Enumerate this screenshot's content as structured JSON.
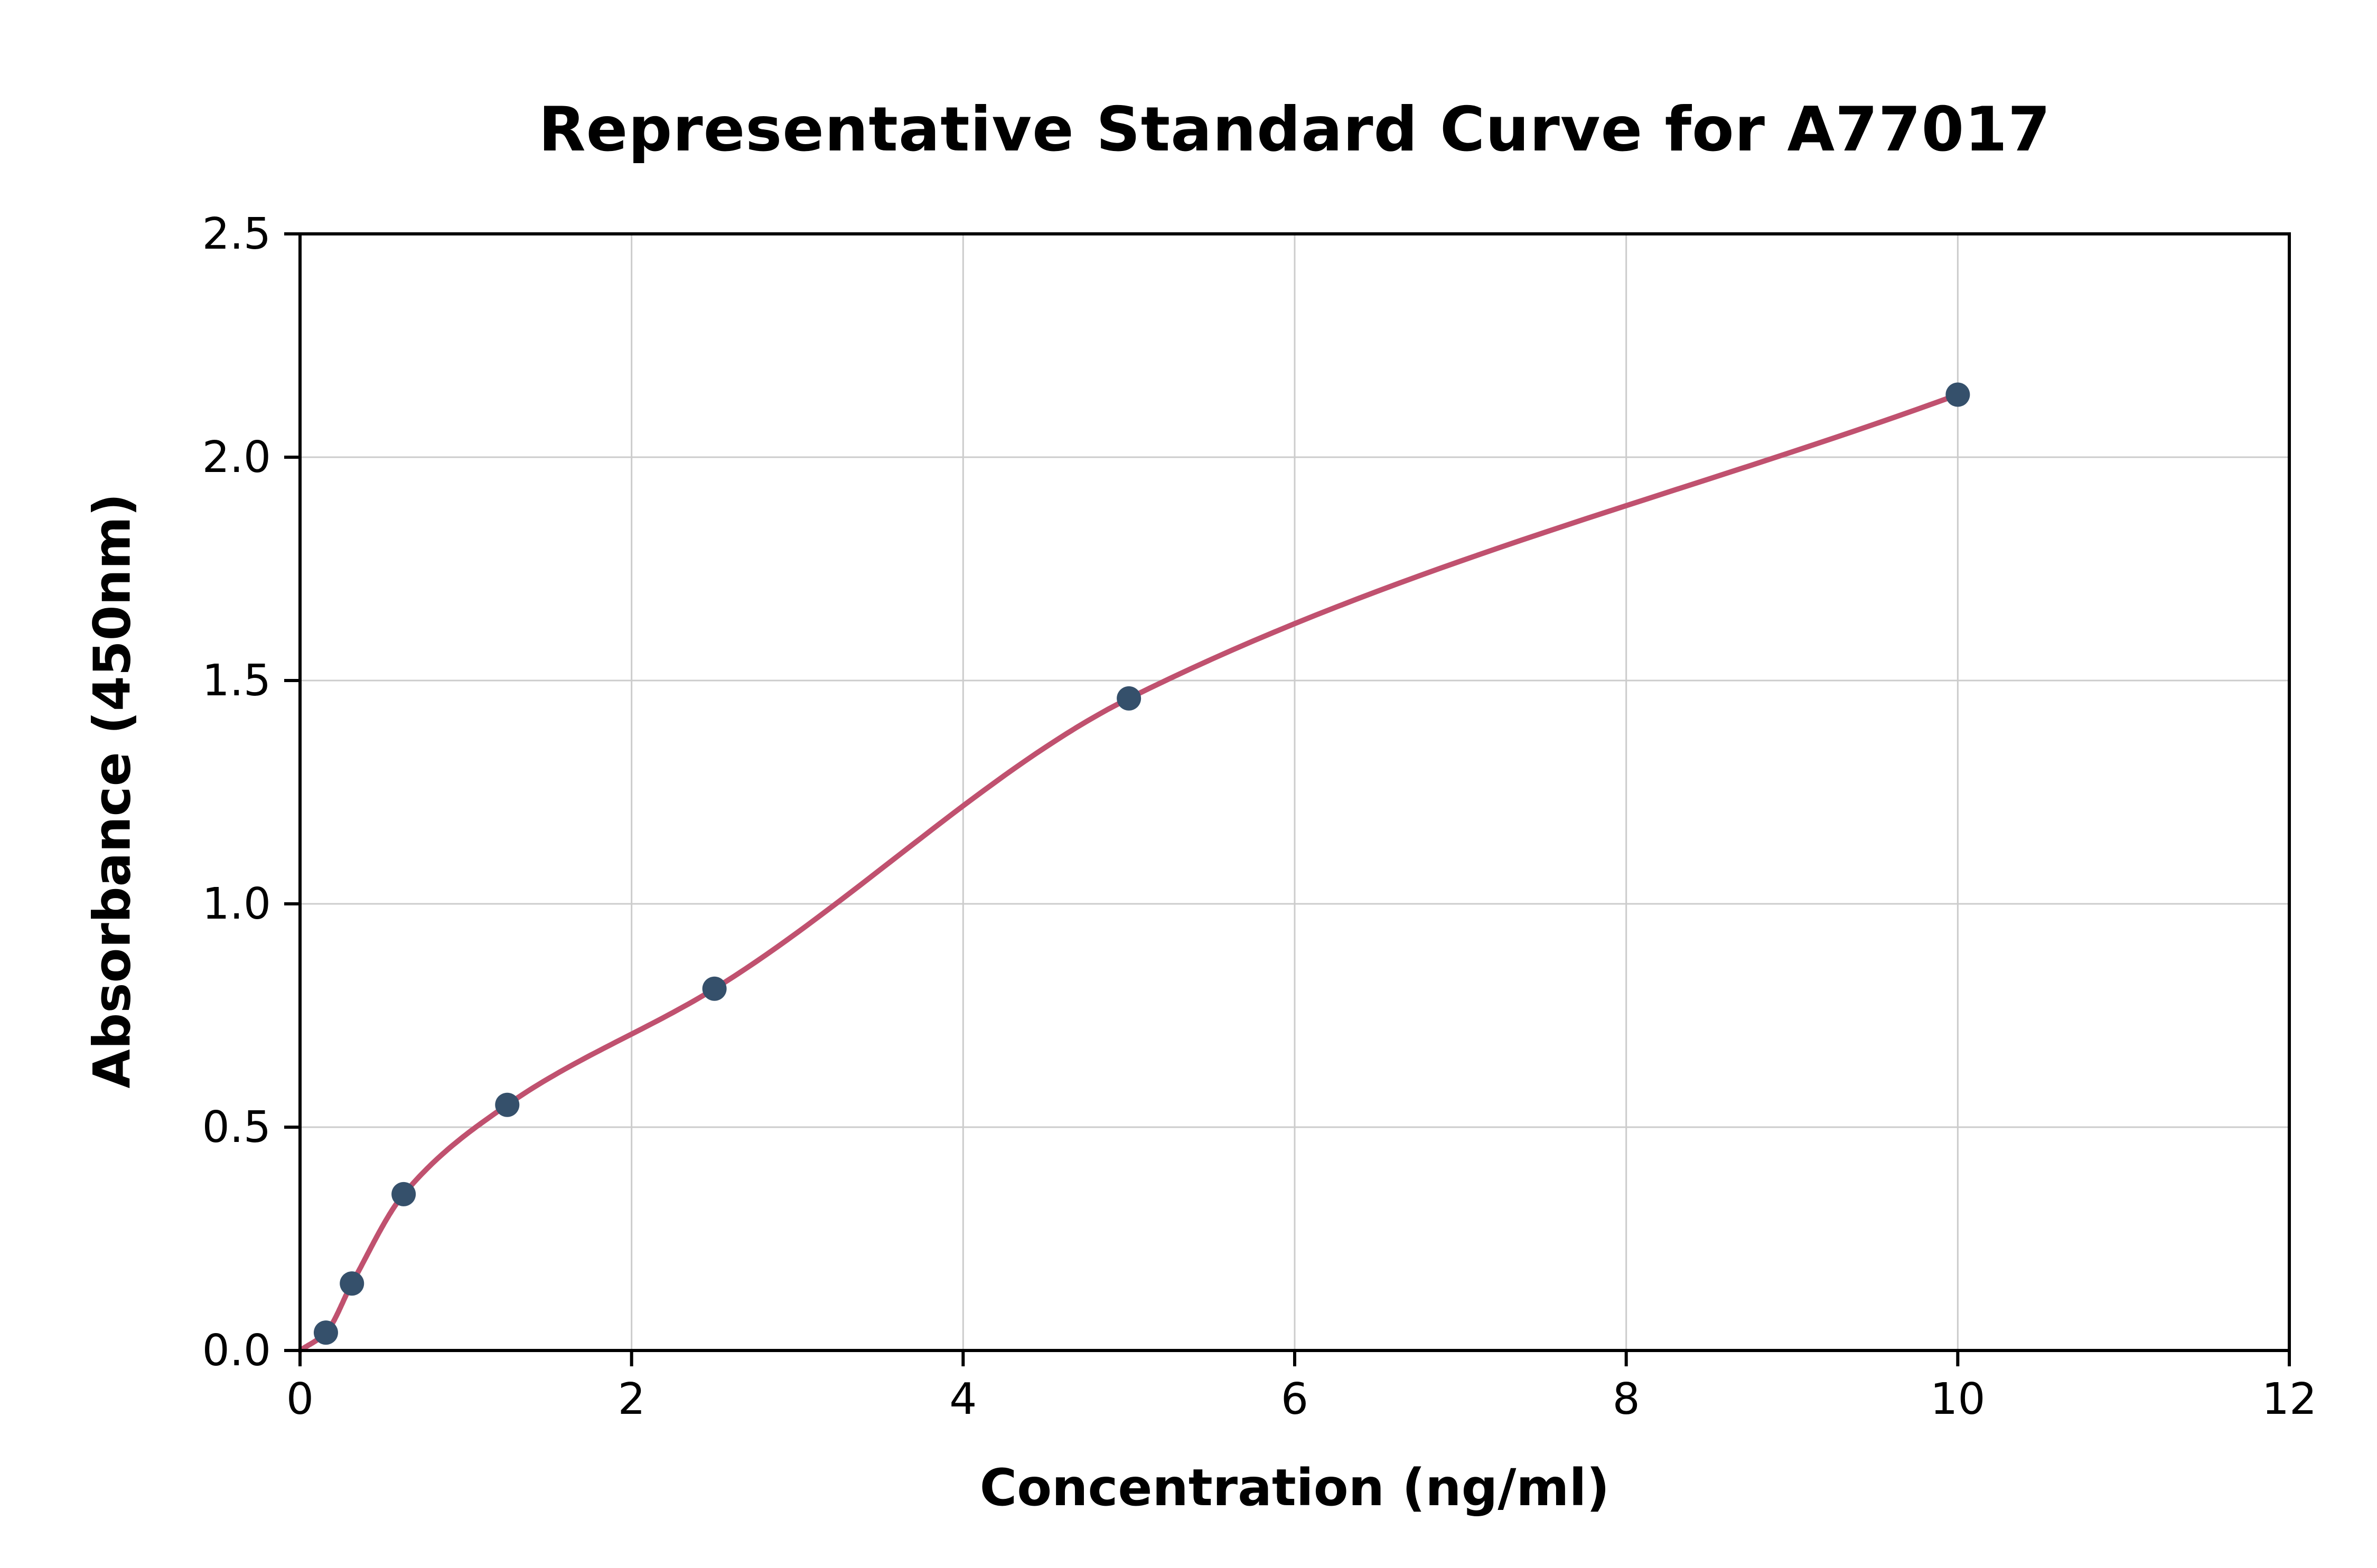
{
  "page": {
    "background": "#ffffff"
  },
  "chart_data": {
    "type": "scatter",
    "title": "Representative Standard Curve for A77017",
    "xlabel": "Concentration (ng/ml)",
    "ylabel": "Absorbance (450nm)",
    "xlim": [
      0,
      12
    ],
    "ylim": [
      0,
      2.5
    ],
    "grid": true,
    "legend": "none",
    "x_ticks": [
      {
        "v": 0,
        "label": "0"
      },
      {
        "v": 2,
        "label": "2"
      },
      {
        "v": 4,
        "label": "4"
      },
      {
        "v": 6,
        "label": "6"
      },
      {
        "v": 8,
        "label": "8"
      },
      {
        "v": 10,
        "label": "10"
      },
      {
        "v": 12,
        "label": "12"
      }
    ],
    "y_ticks": [
      {
        "v": 0,
        "label": "0.0"
      },
      {
        "v": 0.5,
        "label": "0.5"
      },
      {
        "v": 1,
        "label": "1.0"
      },
      {
        "v": 1.5,
        "label": "1.5"
      },
      {
        "v": 2,
        "label": "2.0"
      },
      {
        "v": 2.5,
        "label": "2.5"
      }
    ],
    "series": [
      {
        "name": "standard-points",
        "type": "scatter",
        "color": "#35506b",
        "points": [
          {
            "x": 0.156,
            "y": 0.04
          },
          {
            "x": 0.313,
            "y": 0.15
          },
          {
            "x": 0.625,
            "y": 0.35
          },
          {
            "x": 1.25,
            "y": 0.55
          },
          {
            "x": 2.5,
            "y": 0.81
          },
          {
            "x": 5,
            "y": 1.46
          },
          {
            "x": 10,
            "y": 2.14
          }
        ]
      },
      {
        "name": "fit-curve",
        "type": "line",
        "color": "#c0516f",
        "start": {
          "x": 0,
          "y": 0
        },
        "through_points": true
      }
    ],
    "colors": {
      "grid": "#cccccc",
      "axis": "#000000",
      "text": "#000000"
    }
  }
}
